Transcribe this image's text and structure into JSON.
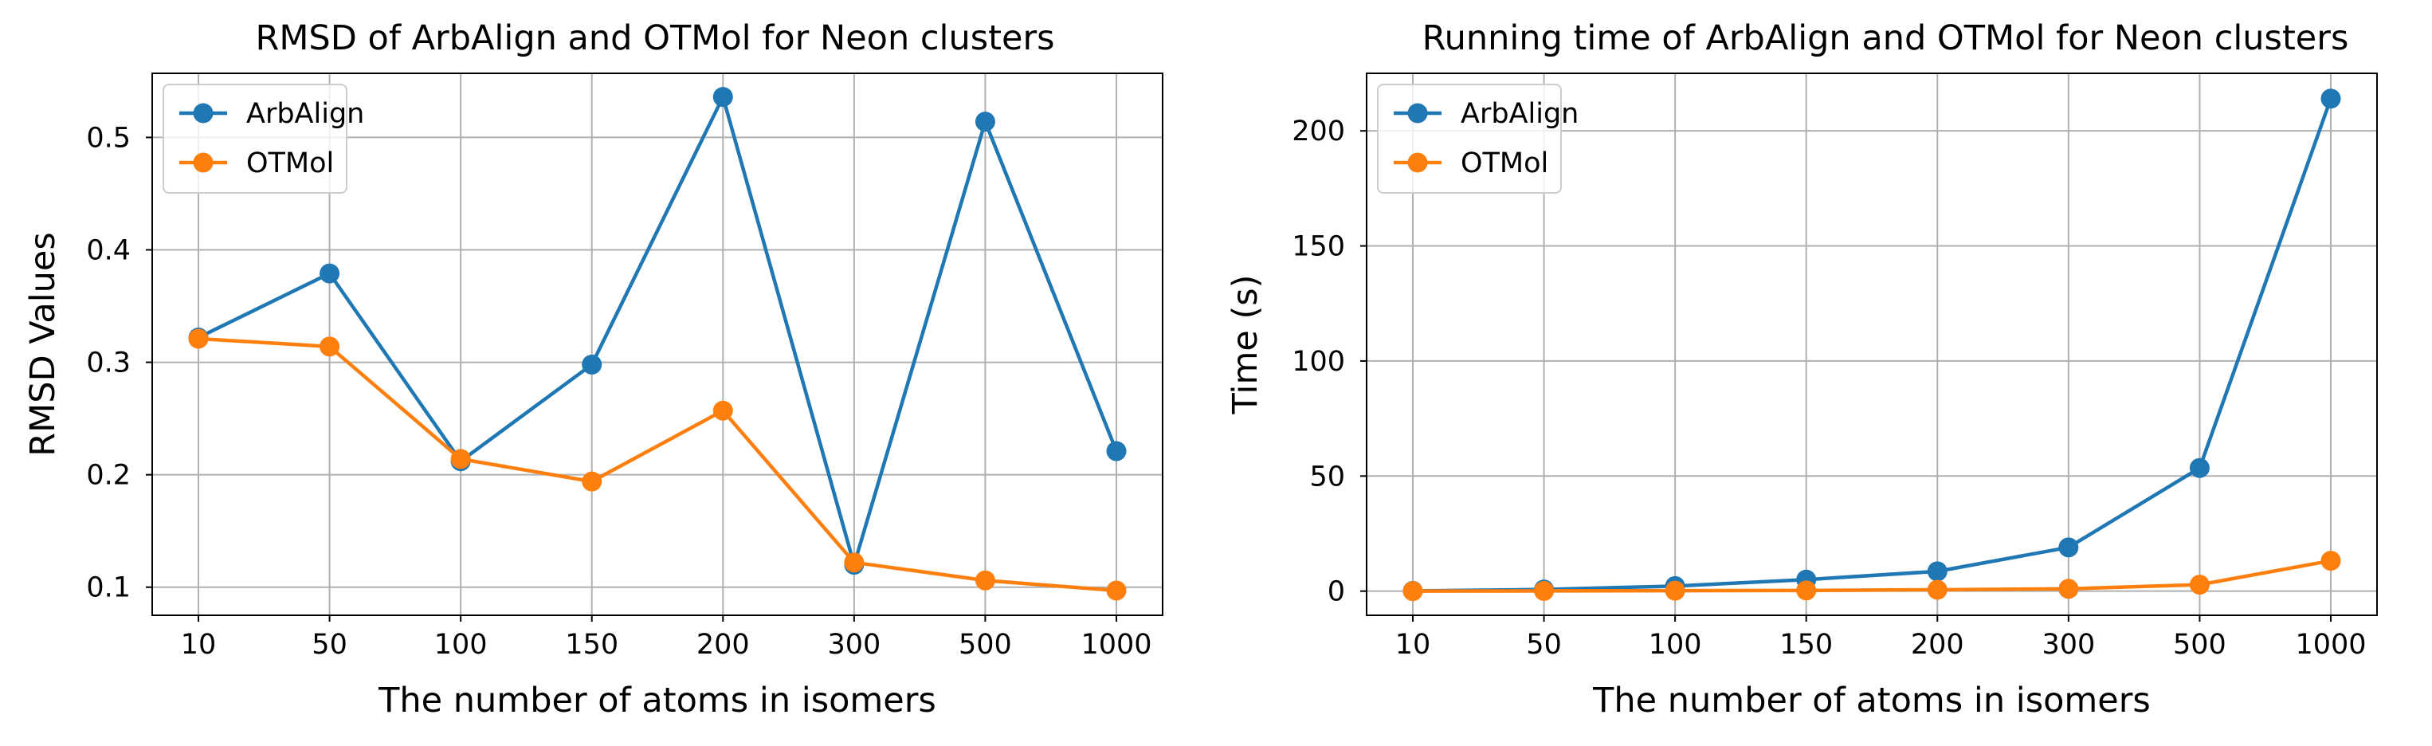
{
  "chart_data": [
    {
      "type": "line",
      "title": "RMSD of ArbAlign and OTMol for Neon clusters",
      "xlabel": "The number of atoms in isomers",
      "ylabel": "RMSD Values",
      "categories": [
        "10",
        "50",
        "100",
        "150",
        "200",
        "300",
        "500",
        "1000"
      ],
      "yticks": [
        "0.1",
        "0.2",
        "0.3",
        "0.4",
        "0.5"
      ],
      "ylim": [
        0.075,
        0.557
      ],
      "grid": true,
      "legend": "top-left",
      "series": [
        {
          "name": "ArbAlign",
          "color": "#1f77b4",
          "values": [
            0.322,
            0.379,
            0.212,
            0.298,
            0.536,
            0.12,
            0.514,
            0.221
          ]
        },
        {
          "name": "OTMol",
          "color": "#ff7f0e",
          "values": [
            0.321,
            0.314,
            0.214,
            0.194,
            0.257,
            0.122,
            0.106,
            0.097
          ]
        }
      ]
    },
    {
      "type": "line",
      "title": "Running time of ArbAlign and OTMol for Neon clusters",
      "xlabel": "The number of atoms in isomers",
      "ylabel": "Time (s)",
      "categories": [
        "10",
        "50",
        "100",
        "150",
        "200",
        "300",
        "500",
        "1000"
      ],
      "yticks": [
        "0",
        "50",
        "100",
        "150",
        "200"
      ],
      "ylim": [
        -10.5,
        225
      ],
      "grid": true,
      "legend": "top-left",
      "series": [
        {
          "name": "ArbAlign",
          "color": "#1f77b4",
          "values": [
            0.1,
            0.7,
            2.2,
            5.0,
            8.6,
            19.0,
            53.5,
            214.0
          ]
        },
        {
          "name": "OTMol",
          "color": "#ff7f0e",
          "values": [
            0.0,
            0.1,
            0.2,
            0.3,
            0.6,
            1.0,
            2.8,
            13.2
          ]
        }
      ]
    }
  ]
}
